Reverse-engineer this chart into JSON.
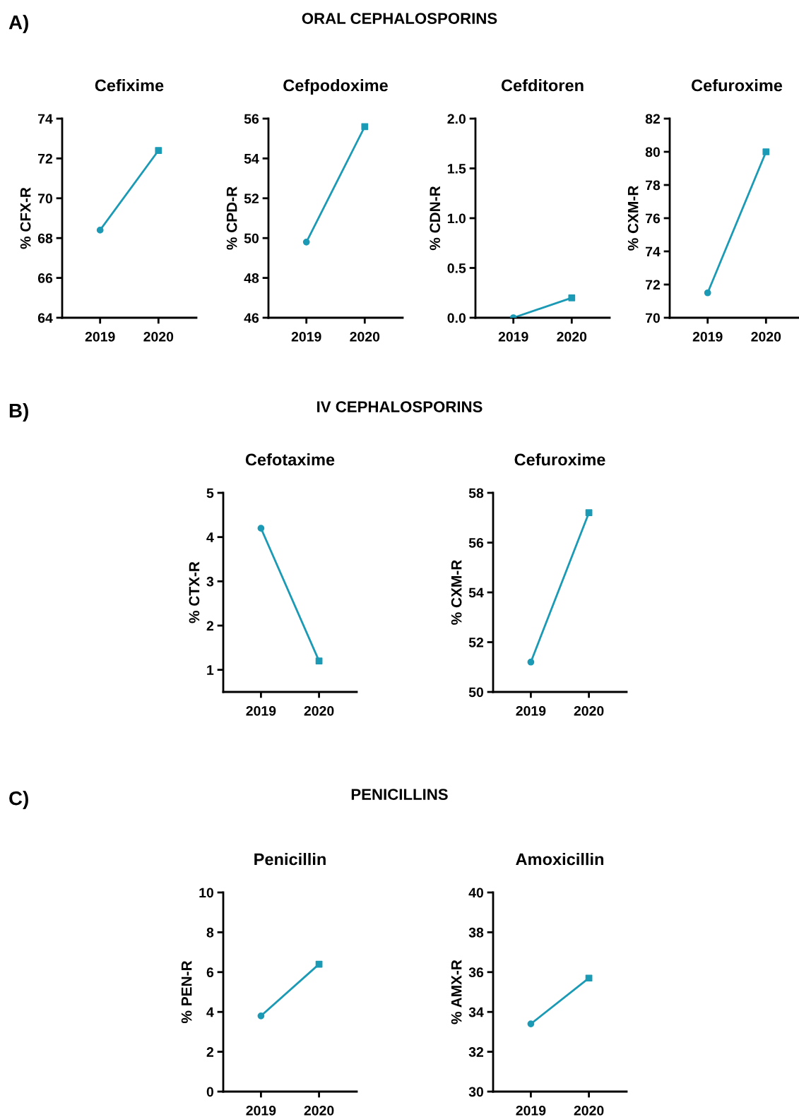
{
  "chart_data": [
    {
      "type": "line",
      "title": "Cefixime",
      "ylabel": "% CFX-R",
      "annotations": [
        "A)",
        "ORAL CEPHALOSPORINS"
      ],
      "categories": [
        "2019",
        "2020"
      ],
      "ylim": [
        64,
        74
      ],
      "yticks": [
        64,
        66,
        68,
        70,
        72,
        74
      ],
      "grid": false,
      "series": [
        {
          "color": "#1b9ab5",
          "values": [
            68.4,
            72.4
          ],
          "marker": "none"
        },
        {
          "type": "scatter",
          "color": "#1b9ab5",
          "values": [
            68.4,
            null
          ],
          "marker": "circle"
        },
        {
          "type": "scatter",
          "color": "#1b9ab5",
          "values": [
            null,
            72.4
          ],
          "marker": "square"
        }
      ]
    },
    {
      "type": "line",
      "title": "Cefpodoxime",
      "ylabel": "% CPD-R",
      "categories": [
        "2019",
        "2020"
      ],
      "ylim": [
        46,
        56
      ],
      "yticks": [
        46,
        48,
        50,
        52,
        54,
        56
      ],
      "grid": false,
      "series": [
        {
          "color": "#1b9ab5",
          "values": [
            49.8,
            55.6
          ],
          "marker": "none"
        },
        {
          "type": "scatter",
          "color": "#1b9ab5",
          "values": [
            49.8,
            null
          ],
          "marker": "circle"
        },
        {
          "type": "scatter",
          "color": "#1b9ab5",
          "values": [
            null,
            55.6
          ],
          "marker": "square"
        }
      ]
    },
    {
      "type": "line",
      "title": "Cefditoren",
      "ylabel": "% CDN-R",
      "categories": [
        "2019",
        "2020"
      ],
      "ylim": [
        0,
        2
      ],
      "yticks": [
        {
          "value": 0,
          "label": "0.0"
        },
        0.5,
        {
          "value": 1,
          "label": "1.0"
        },
        1.5,
        {
          "value": 2,
          "label": "2.0"
        }
      ],
      "grid": false,
      "series": [
        {
          "color": "#1b9ab5",
          "values": [
            0,
            0.2
          ],
          "marker": "none"
        },
        {
          "type": "scatter",
          "color": "#1b9ab5",
          "values": [
            0,
            null
          ],
          "marker": "circle"
        },
        {
          "type": "scatter",
          "color": "#1b9ab5",
          "values": [
            null,
            0.2
          ],
          "marker": "square"
        }
      ]
    },
    {
      "type": "line",
      "title": "Cefuroxime",
      "ylabel": "% CXM-R",
      "categories": [
        "2019",
        "2020"
      ],
      "ylim": [
        70,
        82
      ],
      "yticks": [
        70,
        72,
        74,
        76,
        78,
        80,
        82
      ],
      "grid": false,
      "series": [
        {
          "color": "#1b9ab5",
          "values": [
            71.5,
            80
          ],
          "marker": "none"
        },
        {
          "type": "scatter",
          "color": "#1b9ab5",
          "values": [
            71.5,
            null
          ],
          "marker": "circle"
        },
        {
          "type": "scatter",
          "color": "#1b9ab5",
          "values": [
            null,
            80
          ],
          "marker": "square"
        }
      ]
    },
    {
      "type": "line",
      "title": "Cefotaxime",
      "ylabel": "% CTX-R",
      "annotations": [
        "B)",
        "IV CEPHALOSPORINS"
      ],
      "categories": [
        "2019",
        "2020"
      ],
      "ylim": [
        0.5,
        5
      ],
      "yticks": [
        1,
        2,
        3,
        4,
        5
      ],
      "grid": false,
      "series": [
        {
          "color": "#1b9ab5",
          "values": [
            4.2,
            1.2
          ],
          "marker": "none"
        },
        {
          "type": "scatter",
          "color": "#1b9ab5",
          "values": [
            4.2,
            null
          ],
          "marker": "circle"
        },
        {
          "type": "scatter",
          "color": "#1b9ab5",
          "values": [
            null,
            1.2
          ],
          "marker": "square"
        }
      ]
    },
    {
      "type": "line",
      "title": "Cefuroxime",
      "ylabel": "% CXM-R",
      "categories": [
        "2019",
        "2020"
      ],
      "ylim": [
        50,
        58
      ],
      "yticks": [
        50,
        52,
        54,
        56,
        58
      ],
      "grid": false,
      "series": [
        {
          "color": "#1b9ab5",
          "values": [
            51.2,
            57.2
          ],
          "marker": "none"
        },
        {
          "type": "scatter",
          "color": "#1b9ab5",
          "values": [
            51.2,
            null
          ],
          "marker": "circle"
        },
        {
          "type": "scatter",
          "color": "#1b9ab5",
          "values": [
            null,
            57.2
          ],
          "marker": "square"
        }
      ]
    },
    {
      "type": "line",
      "title": "Penicillin",
      "ylabel": "% PEN-R",
      "annotations": [
        "C)",
        "PENICILLINS"
      ],
      "categories": [
        "2019",
        "2020"
      ],
      "ylim": [
        0,
        10
      ],
      "yticks": [
        0,
        2,
        4,
        6,
        8,
        10
      ],
      "grid": false,
      "series": [
        {
          "color": "#1b9ab5",
          "values": [
            3.8,
            6.4
          ],
          "marker": "none"
        },
        {
          "type": "scatter",
          "color": "#1b9ab5",
          "values": [
            3.8,
            null
          ],
          "marker": "circle"
        },
        {
          "type": "scatter",
          "color": "#1b9ab5",
          "values": [
            null,
            6.4
          ],
          "marker": "square"
        }
      ]
    },
    {
      "type": "line",
      "title": "Amoxicillin",
      "ylabel": "% AMX-R",
      "categories": [
        "2019",
        "2020"
      ],
      "ylim": [
        30,
        40
      ],
      "yticks": [
        30,
        32,
        34,
        36,
        38,
        40
      ],
      "grid": false,
      "series": [
        {
          "color": "#1b9ab5",
          "values": [
            33.4,
            35.7
          ],
          "marker": "none"
        },
        {
          "type": "scatter",
          "color": "#1b9ab5",
          "values": [
            33.4,
            null
          ],
          "marker": "circle"
        },
        {
          "type": "scatter",
          "color": "#1b9ab5",
          "values": [
            null,
            35.7
          ],
          "marker": "square"
        }
      ]
    }
  ]
}
